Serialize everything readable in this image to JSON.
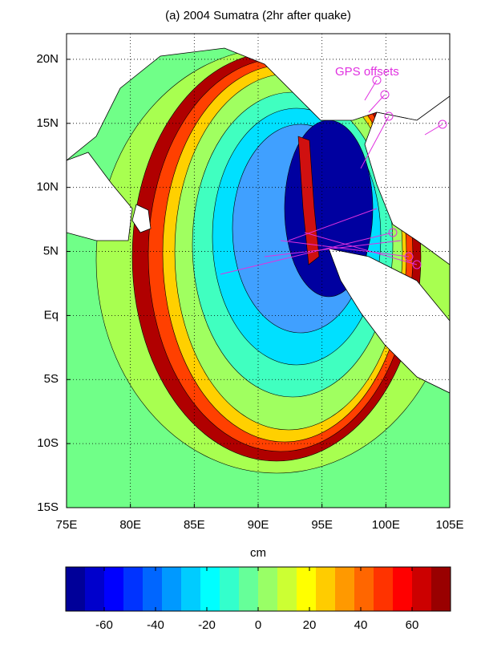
{
  "chart_data": {
    "type": "contour_map",
    "title": "(a) 2004 Sumatra (2hr after quake)",
    "annotations": [
      "GPS offsets"
    ],
    "xlim": [
      75,
      105
    ],
    "xticks": [
      {
        "value": 75,
        "label": "75E"
      },
      {
        "value": 80,
        "label": "80E"
      },
      {
        "value": 85,
        "label": "85E"
      },
      {
        "value": 90,
        "label": "90E"
      },
      {
        "value": 95,
        "label": "95E"
      },
      {
        "value": 100,
        "label": "100E"
      },
      {
        "value": 105,
        "label": "105E"
      }
    ],
    "ylim": [
      -15,
      22
    ],
    "yticks": [
      {
        "value": -15,
        "label": "15S"
      },
      {
        "value": -10,
        "label": "10S"
      },
      {
        "value": -5,
        "label": "5S"
      },
      {
        "value": 0,
        "label": "Eq"
      },
      {
        "value": 5,
        "label": "5N"
      },
      {
        "value": 10,
        "label": "10N"
      },
      {
        "value": 15,
        "label": "15N"
      },
      {
        "value": 20,
        "label": "20N"
      }
    ],
    "grid": true,
    "colorbar": {
      "label": "cm",
      "colormap": "jet",
      "clim": [
        -75,
        75
      ],
      "level_step": 7.5,
      "ticks": [
        -60,
        -40,
        -20,
        0,
        20,
        40,
        60
      ]
    }
  }
}
